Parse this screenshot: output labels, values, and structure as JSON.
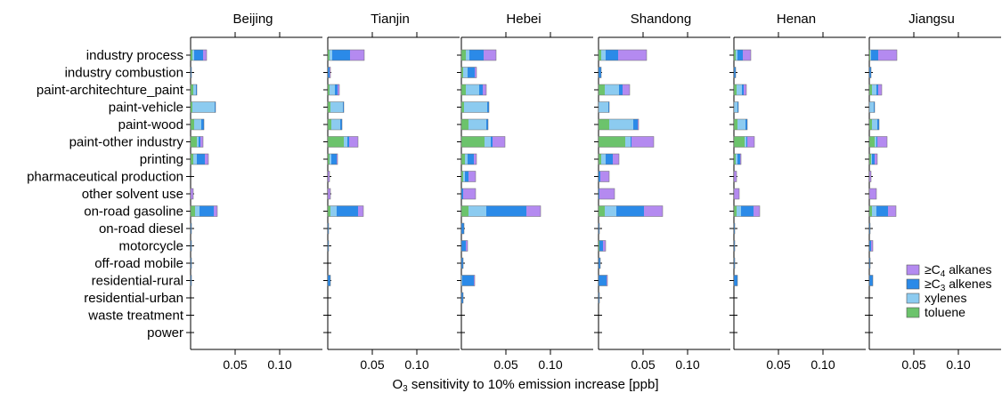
{
  "chart_data": {
    "type": "bar",
    "orientation": "horizontal-stacked",
    "xlabel_pre": "O",
    "xlabel_sub": "3",
    "xlabel_post": " sensitivity to 10% emission increase [ppb]",
    "xlim": [
      0,
      0.14
    ],
    "xticks": [
      "0.05",
      "0.10"
    ],
    "xtick_values": [
      0.05,
      0.1
    ],
    "categories": [
      "industry process",
      "industry combustion",
      "paint-architechture_paint",
      "paint-vehicle",
      "paint-wood",
      "paint-other industry",
      "printing",
      "pharmaceutical production",
      "other solvent use",
      "on-road gasoline",
      "on-road diesel",
      "motorcycle",
      "off-road mobile",
      "residential-rural",
      "residential-urban",
      "waste treatment",
      "power"
    ],
    "series_colors": {
      "toluene": "#6cc36c",
      "xylenes": "#8ccbf0",
      "alkenes": "#2b8ae8",
      "alkanes": "#b48af0"
    },
    "legend": [
      {
        "key": "alkanes",
        "pre": "≥C",
        "sub": "4",
        "post": " alkanes"
      },
      {
        "key": "alkenes",
        "pre": "≥C",
        "sub": "3",
        "post": " alkenes"
      },
      {
        "key": "xylenes",
        "pre": "",
        "sub": "",
        "post": "xylenes"
      },
      {
        "key": "toluene",
        "pre": "",
        "sub": "",
        "post": "toluene"
      }
    ],
    "legend_placement": "bottom-right",
    "panels": [
      {
        "name": "Beijing",
        "rows": [
          [
            0.002,
            0.002,
            0.01,
            0.004
          ],
          [
            0,
            0,
            0.001,
            0
          ],
          [
            0.003,
            0.003,
            0.001,
            0
          ],
          [
            0.002,
            0.025,
            0.001,
            0
          ],
          [
            0.004,
            0.008,
            0.003,
            0
          ],
          [
            0.007,
            0.002,
            0.002,
            0.003
          ],
          [
            0.003,
            0.004,
            0.009,
            0.004
          ],
          [
            0,
            0,
            0,
            0
          ],
          [
            0,
            0,
            0,
            0.003
          ],
          [
            0.005,
            0.005,
            0.016,
            0.004
          ],
          [
            0,
            0,
            0.001,
            0
          ],
          [
            0,
            0,
            0.001,
            0
          ],
          [
            0,
            0,
            0.001,
            0
          ],
          [
            0,
            0,
            0.001,
            0
          ],
          [
            0,
            0,
            0,
            0
          ],
          [
            0,
            0,
            0,
            0
          ],
          [
            0,
            0,
            0,
            0
          ]
        ]
      },
      {
        "name": "Tianjin",
        "rows": [
          [
            0.002,
            0.003,
            0.02,
            0.016
          ],
          [
            0,
            0,
            0.002,
            0.001
          ],
          [
            0.002,
            0.006,
            0.003,
            0.002
          ],
          [
            0.003,
            0.014,
            0.001,
            0
          ],
          [
            0.004,
            0.01,
            0.002,
            0
          ],
          [
            0.018,
            0.004,
            0.002,
            0.01
          ],
          [
            0.002,
            0.002,
            0.006,
            0.001
          ],
          [
            0,
            0,
            0,
            0.002
          ],
          [
            0,
            0,
            0,
            0.003
          ],
          [
            0.003,
            0.007,
            0.024,
            0.006
          ],
          [
            0,
            0,
            0.001,
            0
          ],
          [
            0,
            0,
            0.001,
            0
          ],
          [
            0,
            0,
            0,
            0
          ],
          [
            0,
            0,
            0.003,
            0
          ],
          [
            0,
            0,
            0,
            0
          ],
          [
            0,
            0,
            0,
            0
          ],
          [
            0,
            0,
            0,
            0
          ]
        ]
      },
      {
        "name": "Hebei",
        "rows": [
          [
            0.005,
            0.004,
            0.016,
            0.014
          ],
          [
            0.002,
            0.005,
            0.008,
            0.002
          ],
          [
            0.005,
            0.015,
            0.004,
            0.004
          ],
          [
            0.003,
            0.026,
            0.002,
            0
          ],
          [
            0.008,
            0.02,
            0.002,
            0
          ],
          [
            0.026,
            0.007,
            0.002,
            0.014
          ],
          [
            0.004,
            0.003,
            0.007,
            0.003
          ],
          [
            0.002,
            0.002,
            0.004,
            0.008
          ],
          [
            0,
            0,
            0.002,
            0.014
          ],
          [
            0.008,
            0.02,
            0.045,
            0.016
          ],
          [
            0,
            0,
            0.003,
            0
          ],
          [
            0,
            0,
            0.005,
            0.002
          ],
          [
            0,
            0,
            0.002,
            0
          ],
          [
            0,
            0.001,
            0.013,
            0.001
          ],
          [
            0,
            0,
            0.002,
            0
          ],
          [
            0,
            0,
            0,
            0
          ],
          [
            0,
            0,
            0,
            0
          ]
        ]
      },
      {
        "name": "Shandong",
        "rows": [
          [
            0.003,
            0.005,
            0.014,
            0.032
          ],
          [
            0,
            0,
            0.003,
            0
          ],
          [
            0.007,
            0.016,
            0.004,
            0.008
          ],
          [
            0,
            0.011,
            0.001,
            0
          ],
          [
            0.012,
            0.027,
            0.005,
            0.001
          ],
          [
            0.03,
            0.006,
            0.001,
            0.025
          ],
          [
            0.003,
            0.005,
            0.008,
            0.007
          ],
          [
            0,
            0,
            0.002,
            0.01
          ],
          [
            0,
            0,
            0.001,
            0.017
          ],
          [
            0.007,
            0.013,
            0.031,
            0.021
          ],
          [
            0,
            0,
            0.001,
            0
          ],
          [
            0.001,
            0,
            0.004,
            0.003
          ],
          [
            0,
            0,
            0.002,
            0
          ],
          [
            0,
            0,
            0.009,
            0.001
          ],
          [
            0,
            0,
            0.001,
            0
          ],
          [
            0,
            0,
            0,
            0
          ],
          [
            0,
            0,
            0,
            0
          ]
        ]
      },
      {
        "name": "Henan",
        "rows": [
          [
            0.002,
            0.002,
            0.006,
            0.009
          ],
          [
            0,
            0,
            0.002,
            0
          ],
          [
            0.003,
            0.006,
            0.002,
            0.003
          ],
          [
            0,
            0.004,
            0.001,
            0
          ],
          [
            0.004,
            0.009,
            0.002,
            0
          ],
          [
            0.012,
            0.002,
            0.001,
            0.008
          ],
          [
            0.002,
            0.002,
            0.003,
            0.001
          ],
          [
            0,
            0,
            0,
            0.003
          ],
          [
            0,
            0,
            0,
            0.006
          ],
          [
            0.003,
            0.005,
            0.014,
            0.007
          ],
          [
            0,
            0,
            0.001,
            0
          ],
          [
            0,
            0,
            0.001,
            0
          ],
          [
            0,
            0,
            0.001,
            0
          ],
          [
            0,
            0,
            0.004,
            0
          ],
          [
            0,
            0,
            0,
            0
          ],
          [
            0,
            0,
            0,
            0
          ],
          [
            0,
            0,
            0,
            0
          ]
        ]
      },
      {
        "name": "Jiangsu",
        "rows": [
          [
            0.001,
            0.001,
            0.008,
            0.021
          ],
          [
            0,
            0,
            0.002,
            0
          ],
          [
            0.003,
            0.005,
            0.002,
            0.004
          ],
          [
            0,
            0.005,
            0.001,
            0
          ],
          [
            0.003,
            0.006,
            0.002,
            0
          ],
          [
            0.006,
            0.002,
            0.001,
            0.011
          ],
          [
            0.002,
            0.001,
            0.003,
            0.003
          ],
          [
            0,
            0,
            0,
            0.002
          ],
          [
            0,
            0,
            0,
            0.008
          ],
          [
            0.003,
            0.005,
            0.013,
            0.009
          ],
          [
            0,
            0,
            0.001,
            0
          ],
          [
            0,
            0,
            0.002,
            0.002
          ],
          [
            0,
            0,
            0.001,
            0
          ],
          [
            0,
            0,
            0.004,
            0
          ],
          [
            0,
            0,
            0,
            0
          ],
          [
            0,
            0,
            0,
            0
          ],
          [
            0,
            0,
            0,
            0
          ]
        ]
      }
    ]
  }
}
